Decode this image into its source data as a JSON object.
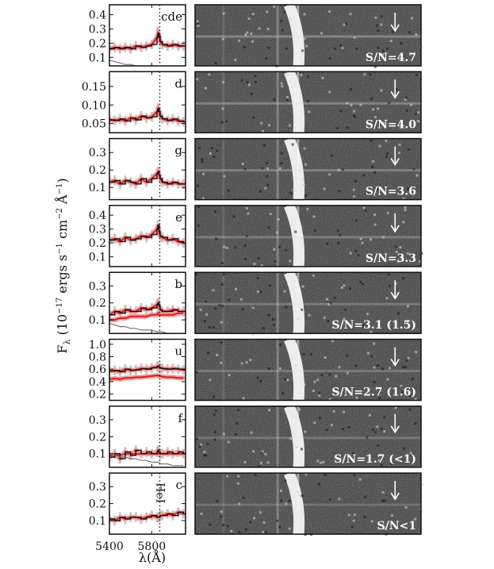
{
  "figure": {
    "ylabel": "F",
    "ylabel_sub": "λ",
    "ylabel_units_pre": "(10",
    "ylabel_exp1": "−17",
    "ylabel_units_mid": " ergs s",
    "ylabel_exp2": "−1",
    "ylabel_units_cm": " cm",
    "ylabel_exp3": "−2",
    "ylabel_units_ang": " Å",
    "ylabel_exp4": "−1",
    "ylabel_units_close": ")",
    "xlabel": "λ(Å)",
    "line_annotation": "HeI"
  },
  "chart_data": [
    {
      "type": "line",
      "panel_id": "cde",
      "sn_label": "S/N=4.7",
      "x": [
        5400,
        5450,
        5500,
        5550,
        5600,
        5650,
        5700,
        5750,
        5800,
        5850,
        5860,
        5870,
        5880,
        5900,
        5950,
        6000,
        6050,
        6100
      ],
      "series": [
        {
          "values": [
            0.16,
            0.17,
            0.16,
            0.17,
            0.16,
            0.18,
            0.17,
            0.18,
            0.19,
            0.24,
            0.27,
            0.25,
            0.21,
            0.19,
            0.18,
            0.19,
            0.18,
            0.18
          ]
        }
      ],
      "continuum": [
        0.08,
        0.07,
        0.06,
        0.05,
        0.05,
        0.04,
        0.04,
        0.03,
        0.03,
        0.03,
        0.02,
        0.02,
        0.02,
        0.02,
        0.01,
        0.01,
        0.01,
        0.01
      ],
      "yticks": [
        0.1,
        0.2,
        0.3,
        0.4
      ],
      "ytick_labels": [
        "0.1",
        "0.2",
        "0.3",
        "0.4"
      ],
      "ylim": [
        0.04,
        0.47
      ],
      "xlim": [
        5400,
        6120
      ],
      "line_position": 5876
    },
    {
      "type": "line",
      "panel_id": "d",
      "sn_label": "S/N=4.0",
      "x": [
        5400,
        5450,
        5500,
        5550,
        5600,
        5650,
        5700,
        5750,
        5800,
        5850,
        5860,
        5870,
        5880,
        5900,
        5950,
        6000,
        6050,
        6100
      ],
      "series": [
        {
          "values": [
            0.06,
            0.058,
            0.062,
            0.057,
            0.065,
            0.06,
            0.07,
            0.065,
            0.068,
            0.082,
            0.09,
            0.083,
            0.07,
            0.063,
            0.058,
            0.062,
            0.057,
            0.055
          ]
        }
      ],
      "yticks": [
        0.05,
        0.1,
        0.15
      ],
      "ytick_labels": [
        "0.05",
        "0.10",
        "0.15"
      ],
      "ylim": [
        0.025,
        0.19
      ],
      "xlim": [
        5400,
        6120
      ],
      "line_position": 5876
    },
    {
      "type": "line",
      "panel_id": "g",
      "sn_label": "S/N=3.6",
      "x": [
        5400,
        5450,
        5500,
        5550,
        5600,
        5650,
        5700,
        5750,
        5800,
        5850,
        5860,
        5870,
        5880,
        5900,
        5950,
        6000,
        6050,
        6100
      ],
      "series": [
        {
          "values": [
            0.13,
            0.14,
            0.12,
            0.14,
            0.13,
            0.12,
            0.15,
            0.13,
            0.15,
            0.18,
            0.19,
            0.17,
            0.15,
            0.13,
            0.12,
            0.13,
            0.12,
            0.12
          ]
        }
      ],
      "yticks": [
        0.1,
        0.2,
        0.3
      ],
      "ytick_labels": [
        "0.1",
        "0.2",
        "0.3"
      ],
      "ylim": [
        0.03,
        0.38
      ],
      "xlim": [
        5400,
        6120
      ],
      "line_position": 5876
    },
    {
      "type": "line",
      "panel_id": "e",
      "sn_label": "S/N=3.3",
      "x": [
        5400,
        5450,
        5500,
        5550,
        5600,
        5650,
        5700,
        5750,
        5800,
        5850,
        5860,
        5870,
        5880,
        5900,
        5950,
        6000,
        6050,
        6100
      ],
      "series": [
        {
          "values": [
            0.22,
            0.23,
            0.21,
            0.24,
            0.22,
            0.23,
            0.25,
            0.24,
            0.26,
            0.3,
            0.33,
            0.28,
            0.25,
            0.24,
            0.22,
            0.23,
            0.21,
            0.2
          ]
        }
      ],
      "yticks": [
        0.1,
        0.2,
        0.3,
        0.4
      ],
      "ytick_labels": [
        "0.1",
        "0.2",
        "0.3",
        "0.4"
      ],
      "ylim": [
        0.03,
        0.47
      ],
      "xlim": [
        5400,
        6120
      ],
      "line_position": 5876
    },
    {
      "type": "line",
      "panel_id": "b",
      "sn_label": "S/N=3.1 (1.5)",
      "x": [
        5400,
        5450,
        5500,
        5550,
        5600,
        5650,
        5700,
        5750,
        5800,
        5850,
        5860,
        5870,
        5880,
        5900,
        5950,
        6000,
        6050,
        6100
      ],
      "series": [
        {
          "values": [
            0.13,
            0.15,
            0.14,
            0.16,
            0.15,
            0.15,
            0.17,
            0.16,
            0.17,
            0.19,
            0.2,
            0.18,
            0.16,
            0.15,
            0.15,
            0.16,
            0.15,
            0.15
          ]
        },
        {
          "values": [
            0.1,
            0.1,
            0.11,
            0.11,
            0.12,
            0.12,
            0.12,
            0.12,
            0.13,
            0.13,
            0.14,
            0.13,
            0.13,
            0.13,
            0.13,
            0.13,
            0.14,
            0.14
          ]
        }
      ],
      "continuum": [
        0.08,
        0.07,
        0.06,
        0.06,
        0.05,
        0.05,
        0.04,
        0.04,
        0.04,
        0.03,
        0.03,
        0.03,
        0.03,
        0.03,
        0.02,
        0.02,
        0.02,
        0.02
      ],
      "yticks": [
        0.1,
        0.2,
        0.3
      ],
      "ytick_labels": [
        "0.1",
        "0.2",
        "0.3"
      ],
      "ylim": [
        0.02,
        0.38
      ],
      "xlim": [
        5400,
        6120
      ],
      "line_position": 5876
    },
    {
      "type": "line",
      "panel_id": "u",
      "sn_label": "S/N=2.7 (1.6)",
      "x": [
        5400,
        5450,
        5500,
        5550,
        5600,
        5650,
        5700,
        5750,
        5800,
        5850,
        5860,
        5870,
        5880,
        5900,
        5950,
        6000,
        6050,
        6100
      ],
      "series": [
        {
          "values": [
            0.57,
            0.58,
            0.56,
            0.6,
            0.58,
            0.59,
            0.61,
            0.6,
            0.62,
            0.64,
            0.65,
            0.63,
            0.62,
            0.61,
            0.6,
            0.61,
            0.6,
            0.59
          ]
        },
        {
          "values": [
            0.44,
            0.45,
            0.44,
            0.46,
            0.46,
            0.47,
            0.47,
            0.48,
            0.49,
            0.5,
            0.5,
            0.49,
            0.49,
            0.48,
            0.47,
            0.47,
            0.46,
            0.46
          ]
        }
      ],
      "yticks": [
        0.2,
        0.4,
        0.6,
        0.8,
        1.0
      ],
      "ytick_labels": [
        "0.2",
        "0.4",
        "0.6",
        "0.8",
        "1.0"
      ],
      "ylim": [
        0.1,
        1.08
      ],
      "xlim": [
        5400,
        6120
      ],
      "line_position": 5876
    },
    {
      "type": "line",
      "panel_id": "f",
      "sn_label": "S/N=1.7 (<1)",
      "x": [
        5400,
        5450,
        5500,
        5550,
        5600,
        5650,
        5700,
        5750,
        5800,
        5850,
        5860,
        5870,
        5880,
        5900,
        5950,
        6000,
        6050,
        6100
      ],
      "series": [
        {
          "values": [
            0.08,
            0.1,
            0.07,
            0.11,
            0.09,
            0.12,
            0.1,
            0.11,
            0.1,
            0.11,
            0.12,
            0.11,
            0.1,
            0.1,
            0.11,
            0.1,
            0.11,
            0.1
          ]
        },
        {
          "values": [
            0.09,
            0.09,
            0.09,
            0.1,
            0.1,
            0.1,
            0.1,
            0.1,
            0.1,
            0.1,
            0.1,
            0.1,
            0.1,
            0.1,
            0.1,
            0.1,
            0.1,
            0.1
          ]
        }
      ],
      "continuum": [
        0.1,
        0.09,
        0.08,
        0.08,
        0.07,
        0.07,
        0.06,
        0.06,
        0.05,
        0.05,
        0.05,
        0.05,
        0.04,
        0.04,
        0.04,
        0.03,
        0.03,
        0.03
      ],
      "yticks": [
        0.1,
        0.2,
        0.3
      ],
      "ytick_labels": [
        "0.1",
        "0.2",
        "0.3"
      ],
      "ylim": [
        0.02,
        0.38
      ],
      "xlim": [
        5400,
        6120
      ],
      "line_position": 5876
    },
    {
      "type": "line",
      "panel_id": "c",
      "sn_label": "S/N<1",
      "x": [
        5400,
        5450,
        5500,
        5550,
        5600,
        5650,
        5700,
        5750,
        5800,
        5850,
        5860,
        5870,
        5880,
        5900,
        5950,
        6000,
        6050,
        6100
      ],
      "series": [
        {
          "values": [
            0.11,
            0.1,
            0.12,
            0.11,
            0.12,
            0.12,
            0.11,
            0.12,
            0.13,
            0.12,
            0.12,
            0.12,
            0.13,
            0.13,
            0.14,
            0.13,
            0.15,
            0.14
          ]
        }
      ],
      "yticks": [
        0.1,
        0.2,
        0.3
      ],
      "ytick_labels": [
        "0.1",
        "0.2",
        "0.3"
      ],
      "ylim": [
        0.02,
        0.38
      ],
      "xlim": [
        5400,
        6120
      ],
      "line_position": 5876
    }
  ],
  "xaxis": {
    "ticks": [
      5400,
      5800
    ],
    "tick_labels": [
      "5400",
      "5800"
    ]
  },
  "colors": {
    "spectrum": "#111111",
    "fit": "#d42020",
    "fit_band": "#f0a0a0",
    "error": "#b8b8b8",
    "continuum": "#777777",
    "background": "#ffffff",
    "image_bg": "#3a3a3a"
  }
}
